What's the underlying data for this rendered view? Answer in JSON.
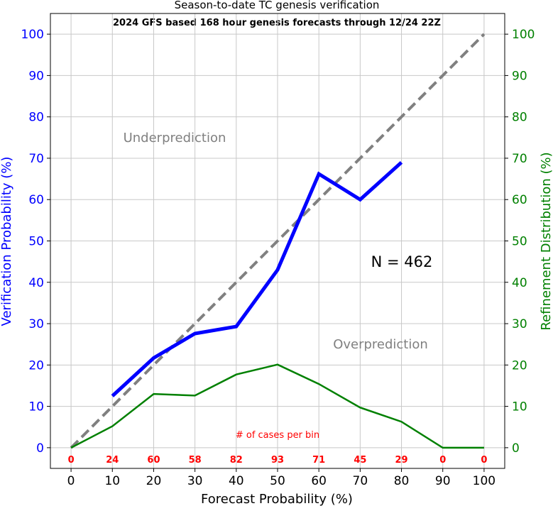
{
  "chart_data": {
    "type": "line",
    "title": "Season-to-date TC genesis verification",
    "subtitle": "2024 GFS based 168 hour genesis forecasts through 12/24 22Z",
    "xlabel": "Forecast Probability (%)",
    "ylabel_left": "Verification Probability (%)",
    "ylabel_right": "Refinement Distribution (%)",
    "xlim": [
      -5,
      105
    ],
    "ylim": [
      -5,
      105
    ],
    "x_ticks": [
      "0",
      "10",
      "20",
      "30",
      "40",
      "50",
      "60",
      "70",
      "80",
      "90",
      "100"
    ],
    "y_ticks": [
      "0",
      "10",
      "20",
      "30",
      "40",
      "50",
      "60",
      "70",
      "80",
      "90",
      "100"
    ],
    "grid": true,
    "annotations": {
      "underprediction": "Underprediction",
      "overprediction": "Overprediction",
      "n_label": "N = 462",
      "cases_label": "# of cases per bin"
    },
    "series": [
      {
        "role": "perfect-reliability",
        "color": "#808080",
        "style": "dashed",
        "points": [
          [
            0,
            0
          ],
          [
            100,
            100
          ]
        ]
      },
      {
        "role": "verification",
        "color": "#0000ff",
        "points": [
          [
            10,
            12.5
          ],
          [
            20,
            21.7
          ],
          [
            30,
            27.6
          ],
          [
            40,
            29.3
          ],
          [
            50,
            43.0
          ],
          [
            60,
            66.2
          ],
          [
            70,
            60.0
          ],
          [
            80,
            69.0
          ]
        ]
      },
      {
        "role": "refinement",
        "color": "#008000",
        "points": [
          [
            0,
            0
          ],
          [
            10,
            5.2
          ],
          [
            20,
            13.0
          ],
          [
            30,
            12.6
          ],
          [
            40,
            17.7
          ],
          [
            50,
            20.1
          ],
          [
            60,
            15.4
          ],
          [
            70,
            9.7
          ],
          [
            80,
            6.3
          ],
          [
            90,
            0
          ],
          [
            100,
            0
          ]
        ]
      }
    ],
    "case_counts": [
      {
        "x": 0,
        "label": "0"
      },
      {
        "x": 10,
        "label": "24"
      },
      {
        "x": 20,
        "label": "60"
      },
      {
        "x": 30,
        "label": "58"
      },
      {
        "x": 40,
        "label": "82"
      },
      {
        "x": 50,
        "label": "93"
      },
      {
        "x": 60,
        "label": "71"
      },
      {
        "x": 70,
        "label": "45"
      },
      {
        "x": 80,
        "label": "29"
      },
      {
        "x": 90,
        "label": "0"
      },
      {
        "x": 100,
        "label": "0"
      }
    ],
    "colors": {
      "left_axis": "#0000ff",
      "right_axis": "#008000",
      "case_counts": "#ff0000",
      "annotation": "#808080"
    }
  }
}
